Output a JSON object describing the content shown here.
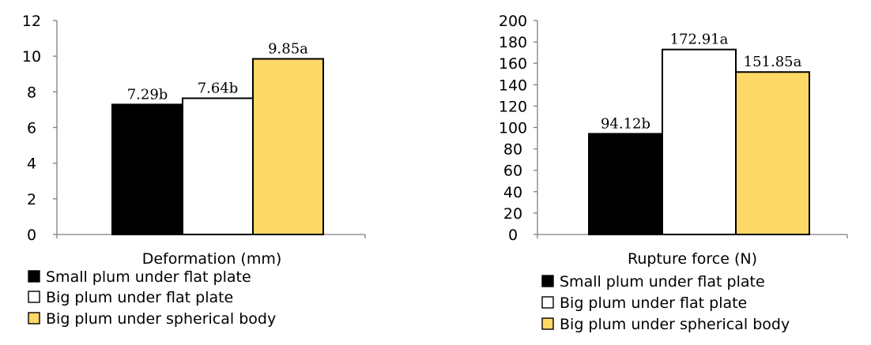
{
  "chart_data": [
    {
      "type": "bar",
      "xlabel": "Deformation (mm)",
      "ylim": [
        0,
        12
      ],
      "yticks": [
        "0",
        "2",
        "4",
        "6",
        "8",
        "10",
        "12"
      ],
      "series": [
        {
          "name": "Small plum under flat plate",
          "value": 7.29,
          "label": "7.29b",
          "color": "#000000"
        },
        {
          "name": "Big plum under flat plate",
          "value": 7.64,
          "label": "7.64b",
          "color": "#ffffff"
        },
        {
          "name": "Big plum under spherical body",
          "value": 9.85,
          "label": "9.85a",
          "color": "#ffd966"
        }
      ],
      "legend_position": "bottom"
    },
    {
      "type": "bar",
      "xlabel": "Rupture force (N)",
      "ylim": [
        0,
        200
      ],
      "yticks": [
        "0",
        "20",
        "40",
        "60",
        "80",
        "100",
        "120",
        "140",
        "160",
        "180",
        "200"
      ],
      "series": [
        {
          "name": "Small plum under flat plate",
          "value": 94.12,
          "label": "94.12b",
          "color": "#000000"
        },
        {
          "name": "Big plum under flat plate",
          "value": 172.91,
          "label": "172.91a",
          "color": "#ffffff"
        },
        {
          "name": "Big plum under spherical body",
          "value": 151.85,
          "label": "151.85a",
          "color": "#ffd966"
        }
      ],
      "legend_position": "bottom"
    }
  ]
}
